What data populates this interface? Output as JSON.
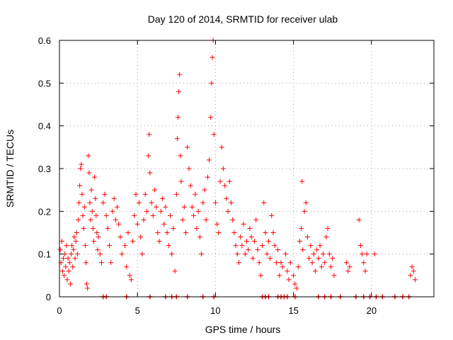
{
  "chart_data": {
    "type": "scatter",
    "title": "Day 120 of 2014, SRMTID for receiver ulab",
    "xlabel": "GPS time / hours",
    "ylabel": "SRMTID / TECUs",
    "xlim": [
      0,
      24
    ],
    "ylim": [
      0,
      0.6
    ],
    "x_ticks": [
      0,
      5,
      10,
      15,
      20
    ],
    "x_tick_labels": [
      "0",
      "5",
      "10",
      "15",
      "20"
    ],
    "y_ticks": [
      0,
      0.1,
      0.2,
      0.3,
      0.4,
      0.5,
      0.6
    ],
    "y_tick_labels": [
      "0",
      "0.1",
      "0.2",
      "0.3",
      "0.4",
      "0.5",
      "0.6"
    ],
    "grid": true,
    "marker": "plus",
    "series": [
      {
        "name": "SRMTID",
        "color": "#ff0000",
        "points": [
          [
            0.05,
            0.11
          ],
          [
            0.1,
            0.08
          ],
          [
            0.15,
            0.13
          ],
          [
            0.2,
            0.06
          ],
          [
            0.25,
            0.09
          ],
          [
            0.3,
            0.05
          ],
          [
            0.35,
            0.1
          ],
          [
            0.4,
            0.07
          ],
          [
            0.45,
            0.12
          ],
          [
            0.5,
            0.04
          ],
          [
            0.55,
            0.09
          ],
          [
            0.6,
            0.06
          ],
          [
            0.65,
            0.08
          ],
          [
            0.7,
            0.03
          ],
          [
            0.75,
            0.1
          ],
          [
            0.8,
            0.12
          ],
          [
            0.85,
            0.07
          ],
          [
            0.9,
            0.11
          ],
          [
            0.95,
            0.14
          ],
          [
            1.0,
            0.09
          ],
          [
            1.05,
            0.13
          ],
          [
            1.1,
            0.15
          ],
          [
            1.15,
            0.1
          ],
          [
            1.2,
            0.18
          ],
          [
            1.25,
            0.22
          ],
          [
            1.3,
            0.26
          ],
          [
            1.35,
            0.3
          ],
          [
            1.4,
            0.31
          ],
          [
            1.45,
            0.24
          ],
          [
            1.5,
            0.19
          ],
          [
            1.55,
            0.16
          ],
          [
            1.6,
            0.21
          ],
          [
            1.65,
            0.12
          ],
          [
            1.7,
            0.08
          ],
          [
            1.75,
            0.03
          ],
          [
            1.8,
            0.02
          ],
          [
            1.85,
            0.33
          ],
          [
            1.9,
            0.29
          ],
          [
            1.95,
            0.22
          ],
          [
            2.0,
            0.18
          ],
          [
            2.05,
            0.25
          ],
          [
            2.1,
            0.2
          ],
          [
            2.15,
            0.16
          ],
          [
            2.2,
            0.13
          ],
          [
            2.25,
            0.28
          ],
          [
            2.3,
            0.23
          ],
          [
            2.35,
            0.19
          ],
          [
            2.4,
            0.15
          ],
          [
            2.45,
            0.11
          ],
          [
            2.5,
            0.14
          ],
          [
            2.6,
            0.1
          ],
          [
            2.7,
            0.08
          ],
          [
            2.8,
            0.22
          ],
          [
            2.9,
            0.24
          ],
          [
            3.0,
            0.19
          ],
          [
            3.1,
            0.16
          ],
          [
            3.2,
            0.12
          ],
          [
            3.3,
            0.08
          ],
          [
            3.4,
            0.2
          ],
          [
            3.5,
            0.23
          ],
          [
            3.6,
            0.18
          ],
          [
            3.7,
            0.21
          ],
          [
            3.8,
            0.17
          ],
          [
            3.9,
            0.14
          ],
          [
            4.0,
            0.1
          ],
          [
            4.2,
            0.12
          ],
          [
            4.3,
            0.07
          ],
          [
            4.4,
            0.15
          ],
          [
            4.5,
            0.05
          ],
          [
            4.6,
            0.04
          ],
          [
            4.7,
            0.13
          ],
          [
            4.8,
            0.19
          ],
          [
            4.9,
            0.24
          ],
          [
            5.0,
            0.17
          ],
          [
            5.1,
            0.22
          ],
          [
            5.2,
            0.14
          ],
          [
            5.3,
            0.1
          ],
          [
            5.4,
            0.18
          ],
          [
            5.5,
            0.24
          ],
          [
            5.6,
            0.2
          ],
          [
            5.7,
            0.33
          ],
          [
            5.75,
            0.38
          ],
          [
            5.8,
            0.29
          ],
          [
            5.9,
            0.22
          ],
          [
            6.0,
            0.19
          ],
          [
            6.1,
            0.25
          ],
          [
            6.2,
            0.21
          ],
          [
            6.3,
            0.15
          ],
          [
            6.4,
            0.13
          ],
          [
            6.5,
            0.2
          ],
          [
            6.6,
            0.23
          ],
          [
            6.7,
            0.17
          ],
          [
            6.8,
            0.21
          ],
          [
            6.9,
            0.15
          ],
          [
            7.0,
            0.12
          ],
          [
            7.1,
            0.19
          ],
          [
            7.2,
            0.1
          ],
          [
            7.3,
            0.16
          ],
          [
            7.4,
            0.06
          ],
          [
            7.5,
            0.24
          ],
          [
            7.55,
            0.37
          ],
          [
            7.6,
            0.42
          ],
          [
            7.65,
            0.48
          ],
          [
            7.7,
            0.52
          ],
          [
            7.75,
            0.33
          ],
          [
            7.8,
            0.27
          ],
          [
            7.9,
            0.18
          ],
          [
            8.0,
            0.21
          ],
          [
            8.1,
            0.15
          ],
          [
            8.2,
            0.35
          ],
          [
            8.3,
            0.3
          ],
          [
            8.4,
            0.26
          ],
          [
            8.5,
            0.21
          ],
          [
            8.6,
            0.19
          ],
          [
            8.7,
            0.24
          ],
          [
            8.8,
            0.16
          ],
          [
            8.9,
            0.2
          ],
          [
            9.0,
            0.14
          ],
          [
            9.1,
            0.1
          ],
          [
            9.2,
            0.22
          ],
          [
            9.3,
            0.25
          ],
          [
            9.4,
            0.18
          ],
          [
            9.5,
            0.28
          ],
          [
            9.6,
            0.32
          ],
          [
            9.7,
            0.42
          ],
          [
            9.75,
            0.5
          ],
          [
            9.8,
            0.56
          ],
          [
            9.85,
            0.6
          ],
          [
            9.9,
            0.38
          ],
          [
            10.0,
            0.22
          ],
          [
            10.1,
            0.17
          ],
          [
            10.2,
            0.15
          ],
          [
            10.3,
            0.27
          ],
          [
            10.4,
            0.35
          ],
          [
            10.5,
            0.3
          ],
          [
            10.6,
            0.26
          ],
          [
            10.7,
            0.23
          ],
          [
            10.8,
            0.2
          ],
          [
            10.9,
            0.27
          ],
          [
            11.0,
            0.22
          ],
          [
            11.1,
            0.18
          ],
          [
            11.2,
            0.15
          ],
          [
            11.3,
            0.12
          ],
          [
            11.4,
            0.1
          ],
          [
            11.5,
            0.08
          ],
          [
            11.6,
            0.14
          ],
          [
            11.7,
            0.12
          ],
          [
            11.8,
            0.17
          ],
          [
            11.9,
            0.1
          ],
          [
            12.0,
            0.13
          ],
          [
            12.1,
            0.11
          ],
          [
            12.2,
            0.16
          ],
          [
            12.3,
            0.14
          ],
          [
            12.4,
            0.09
          ],
          [
            12.5,
            0.13
          ],
          [
            12.6,
            0.18
          ],
          [
            12.7,
            0.11
          ],
          [
            12.8,
            0.08
          ],
          [
            12.9,
            0.05
          ],
          [
            13.0,
            0.12
          ],
          [
            13.1,
            0.22
          ],
          [
            13.2,
            0.15
          ],
          [
            13.3,
            0.1
          ],
          [
            13.4,
            0.13
          ],
          [
            13.5,
            0.09
          ],
          [
            13.6,
            0.19
          ],
          [
            13.7,
            0.15
          ],
          [
            13.8,
            0.12
          ],
          [
            13.9,
            0.08
          ],
          [
            14.0,
            0.11
          ],
          [
            14.1,
            0.05
          ],
          [
            14.2,
            0.08
          ],
          [
            14.3,
            0.07
          ],
          [
            14.5,
            0.1
          ],
          [
            14.6,
            0.06
          ],
          [
            14.7,
            0.04
          ],
          [
            14.8,
            0.08
          ],
          [
            15.0,
            0.05
          ],
          [
            15.1,
            0.03
          ],
          [
            15.2,
            0.02
          ],
          [
            15.3,
            0.07
          ],
          [
            15.4,
            0.13
          ],
          [
            15.5,
            0.16
          ],
          [
            15.55,
            0.27
          ],
          [
            15.6,
            0.11
          ],
          [
            15.7,
            0.2
          ],
          [
            15.8,
            0.22
          ],
          [
            15.9,
            0.14
          ],
          [
            16.0,
            0.09
          ],
          [
            16.1,
            0.12
          ],
          [
            16.2,
            0.08
          ],
          [
            16.3,
            0.1
          ],
          [
            16.4,
            0.06
          ],
          [
            16.5,
            0.11
          ],
          [
            16.6,
            0.09
          ],
          [
            16.7,
            0.12
          ],
          [
            16.8,
            0.07
          ],
          [
            16.9,
            0.1
          ],
          [
            17.0,
            0.08
          ],
          [
            17.1,
            0.14
          ],
          [
            17.2,
            0.16
          ],
          [
            17.3,
            0.1
          ],
          [
            17.4,
            0.07
          ],
          [
            17.5,
            0.09
          ],
          [
            17.6,
            0.05
          ],
          [
            18.4,
            0.08
          ],
          [
            18.5,
            0.06
          ],
          [
            18.6,
            0.07
          ],
          [
            19.2,
            0.18
          ],
          [
            19.3,
            0.12
          ],
          [
            19.4,
            0.1
          ],
          [
            19.5,
            0.08
          ],
          [
            19.6,
            0.06
          ],
          [
            19.7,
            0.1
          ],
          [
            20.2,
            0.1
          ],
          [
            22.5,
            0.05
          ],
          [
            22.6,
            0.07
          ],
          [
            22.7,
            0.06
          ],
          [
            22.8,
            0.04
          ]
        ]
      }
    ],
    "baseline_points_x": [
      2.8,
      3.0,
      4.3,
      5.8,
      6.8,
      7.2,
      7.5,
      8.2,
      9.2,
      9.9,
      13.0,
      13.2,
      13.4,
      14.0,
      14.2,
      14.4,
      14.6,
      15.1,
      16.6,
      17.0,
      17.4,
      18.0,
      19.0,
      19.5,
      19.9,
      20.3,
      20.7,
      21.5,
      22.0,
      22.4
    ]
  }
}
